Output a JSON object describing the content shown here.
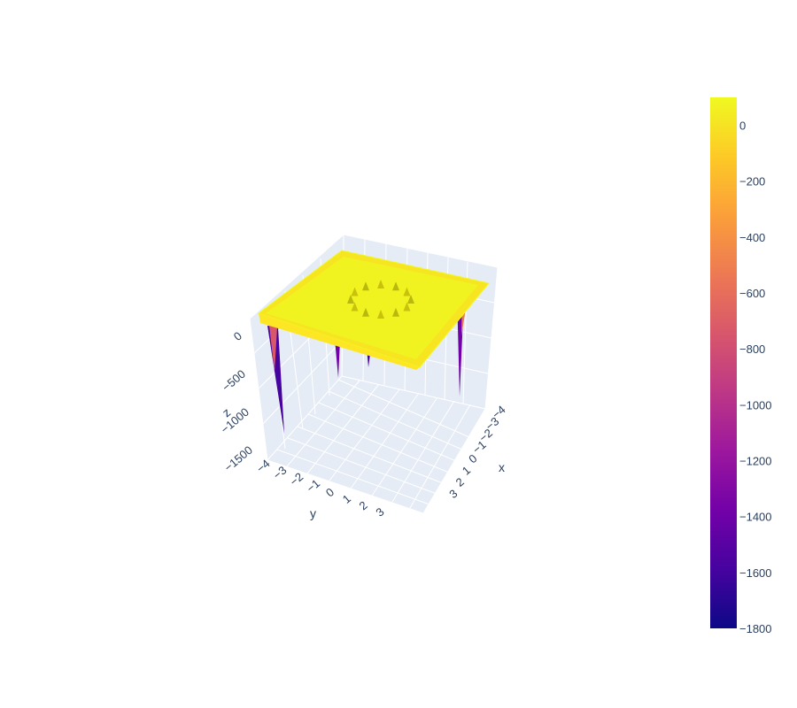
{
  "chart_data": {
    "type": "surface",
    "title": "",
    "x_axis": {
      "label": "x",
      "ticks": [
        "−4",
        "−3",
        "−2",
        "−1",
        "0",
        "1",
        "2",
        "3"
      ],
      "range": [
        -4,
        3.8
      ]
    },
    "y_axis": {
      "label": "y",
      "ticks": [
        "−4",
        "−3",
        "−2",
        "−1",
        "0",
        "1",
        "2",
        "3"
      ],
      "range": [
        -4,
        3.8
      ]
    },
    "z_axis": {
      "label": "z",
      "ticks": [
        "0",
        "−500",
        "−1000",
        "−1500"
      ],
      "range": [
        -1800,
        100
      ]
    },
    "colorbar": {
      "colorscale": "plasma",
      "range": [
        -1800,
        100
      ],
      "ticks": [
        "0",
        "−200",
        "−400",
        "−600",
        "−800",
        "−1000",
        "−1200",
        "−1400",
        "−1600",
        "−1800"
      ]
    },
    "surface_description": {
      "plateau_z": 0,
      "ring_peaks": {
        "radius": 1.2,
        "count": 12,
        "height": 40
      },
      "edge_spikes": [
        {
          "x": -4,
          "y": -4,
          "z": -1800
        },
        {
          "x": 3.8,
          "y": 3.8,
          "z": -1650
        },
        {
          "x": 1,
          "y": -4,
          "z": -1200
        },
        {
          "x": 3,
          "y": -4,
          "z": -850
        }
      ]
    },
    "colors": {
      "background": "#ffffff",
      "grid_pane": "#e5ecf6",
      "grid_line": "#ffffff",
      "tick_text": "#2a3f5f",
      "plasma": [
        "#0d0887",
        "#46039f",
        "#7201a8",
        "#9c179e",
        "#bd3786",
        "#d8576b",
        "#ed7953",
        "#fb9f3a",
        "#fdca26",
        "#f0f921"
      ]
    }
  }
}
